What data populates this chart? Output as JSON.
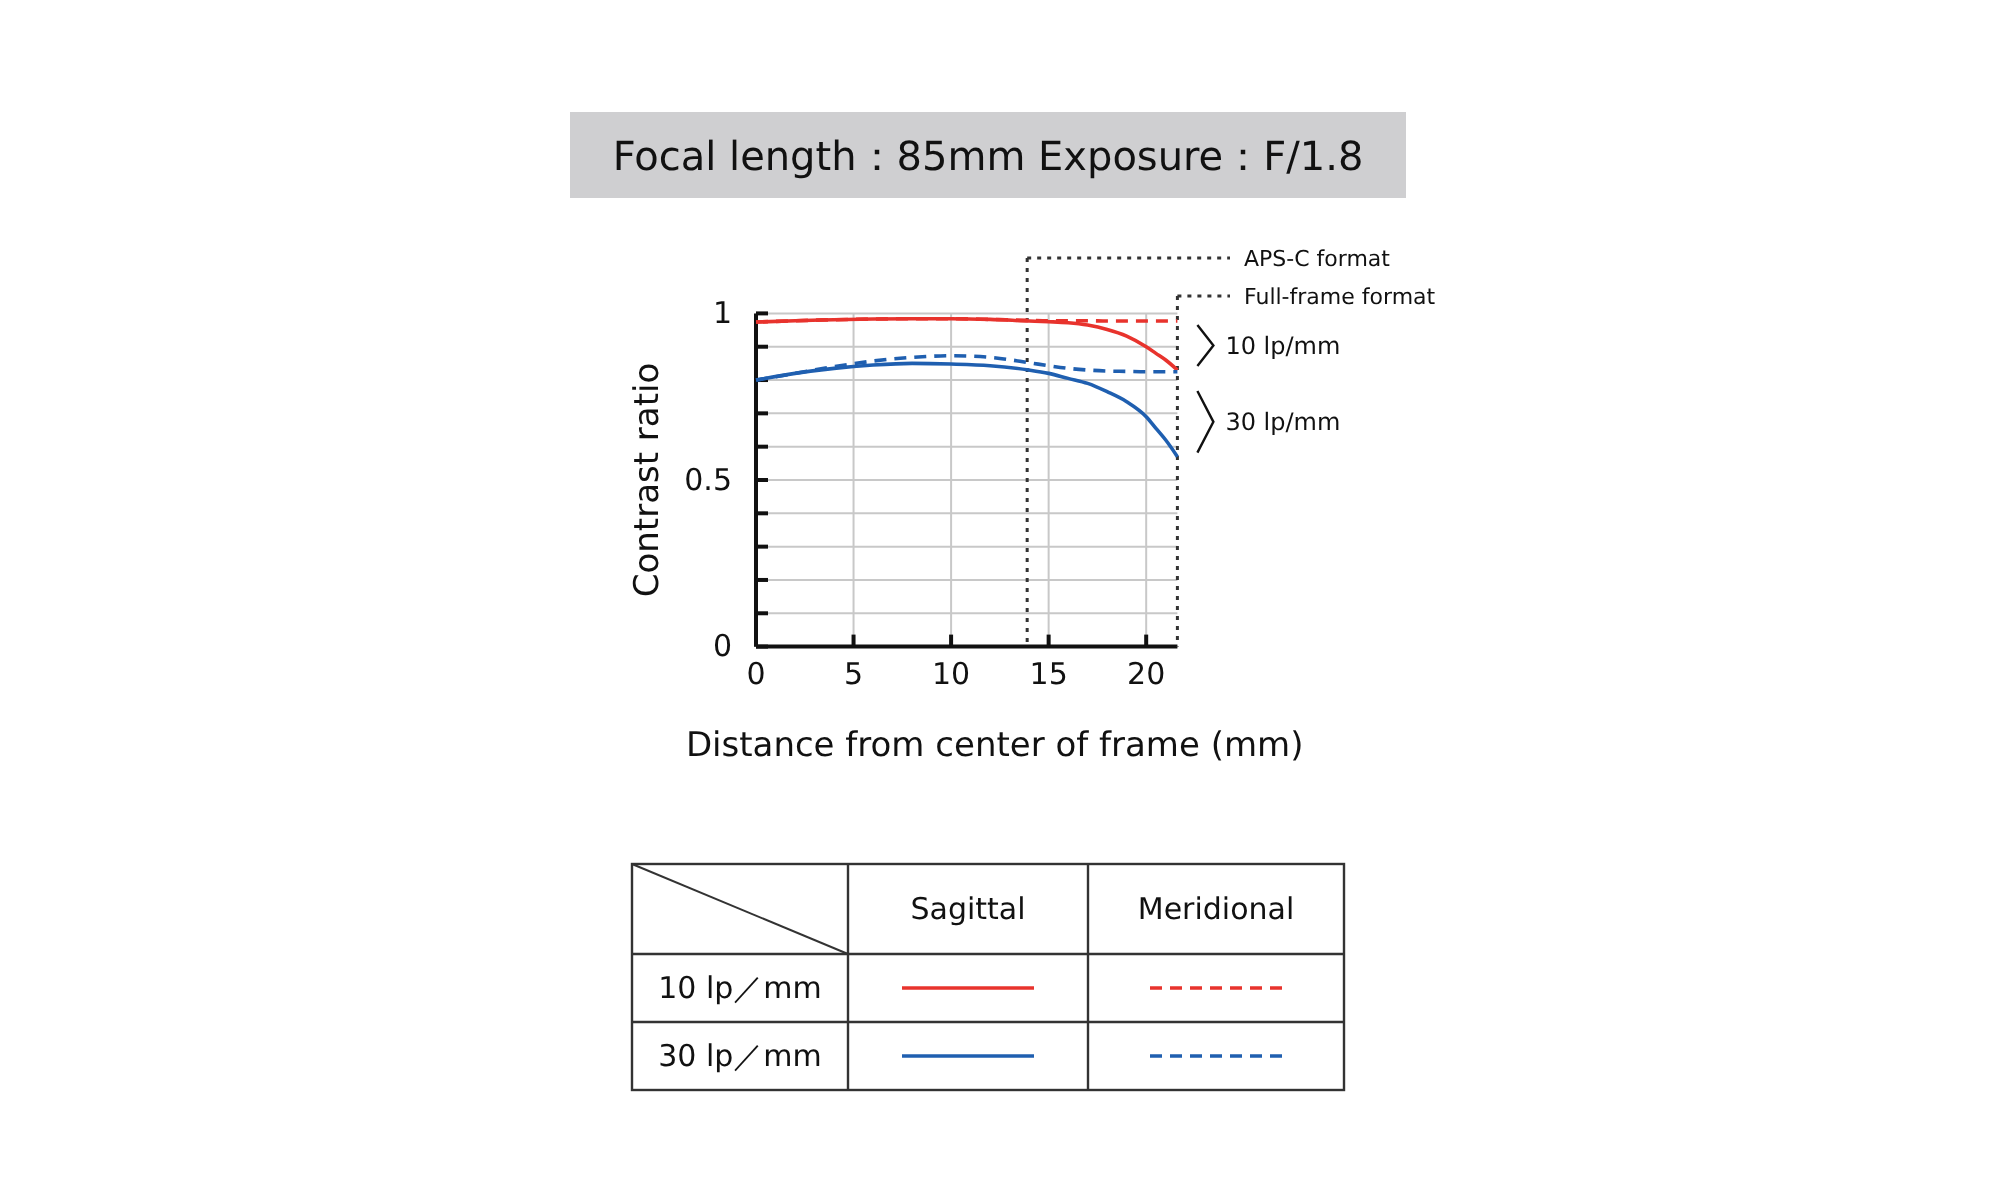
{
  "chart_data": {
    "type": "line",
    "title": "Focal length：85mm  Exposure：F/1.8",
    "xlabel": "Distance from center of frame (mm)",
    "ylabel": "Contrast ratio",
    "xlim": [
      0,
      21.6
    ],
    "xticks": [
      0,
      5,
      10,
      15,
      20
    ],
    "ylim": [
      0,
      1
    ],
    "yticks": [
      0,
      {
        "value": 0.1,
        "label": null
      },
      {
        "value": 0.2,
        "label": null
      },
      {
        "value": 0.3,
        "label": null
      },
      {
        "value": 0.4,
        "label": null
      },
      0.5,
      {
        "value": 0.6,
        "label": null
      },
      {
        "value": 0.7,
        "label": null
      },
      {
        "value": 0.8,
        "label": null
      },
      {
        "value": 0.9,
        "label": null
      },
      1
    ],
    "grid": true,
    "marker": "none",
    "x": [
      0,
      2,
      4,
      6,
      8,
      10,
      12,
      14,
      15,
      16,
      17,
      18,
      19,
      20,
      20.5,
      21,
      21.6
    ],
    "series": [
      {
        "color": "#e8332d",
        "line_style": "solid",
        "values": [
          0.974,
          0.978,
          0.981,
          0.983,
          0.984,
          0.984,
          0.982,
          0.977,
          0.975,
          0.972,
          0.965,
          0.952,
          0.932,
          0.9,
          0.88,
          0.86,
          0.83
        ]
      },
      {
        "color": "#e8332d",
        "line_style": "dashed",
        "values": [
          0.974,
          0.978,
          0.981,
          0.983,
          0.984,
          0.984,
          0.982,
          0.979,
          0.978,
          0.978,
          0.978,
          0.977,
          0.977,
          0.977,
          0.977,
          0.977,
          0.977
        ]
      },
      {
        "color": "#1f5fb0",
        "line_style": "solid",
        "values": [
          0.8,
          0.82,
          0.835,
          0.845,
          0.85,
          0.848,
          0.843,
          0.83,
          0.82,
          0.805,
          0.79,
          0.765,
          0.735,
          0.69,
          0.655,
          0.62,
          0.57
        ]
      },
      {
        "color": "#1f5fb0",
        "line_style": "dashed",
        "values": [
          0.8,
          0.82,
          0.84,
          0.857,
          0.868,
          0.873,
          0.868,
          0.852,
          0.843,
          0.835,
          0.83,
          0.827,
          0.826,
          0.825,
          0.825,
          0.825,
          0.825
        ]
      }
    ],
    "ref_lines": [
      {
        "axis": "x",
        "value": 13.9,
        "label": "APS-C format",
        "color": "#333333",
        "line_style": "dotted"
      },
      {
        "axis": "x",
        "value": 21.6,
        "label": "Full-frame format",
        "color": "#333333",
        "line_style": "dotted"
      }
    ],
    "annotations": [
      "10 lp/mm",
      "30 lp/mm",
      "Sagittal",
      "Meridional",
      "10 lp／mm",
      "30 lp／mm"
    ]
  }
}
